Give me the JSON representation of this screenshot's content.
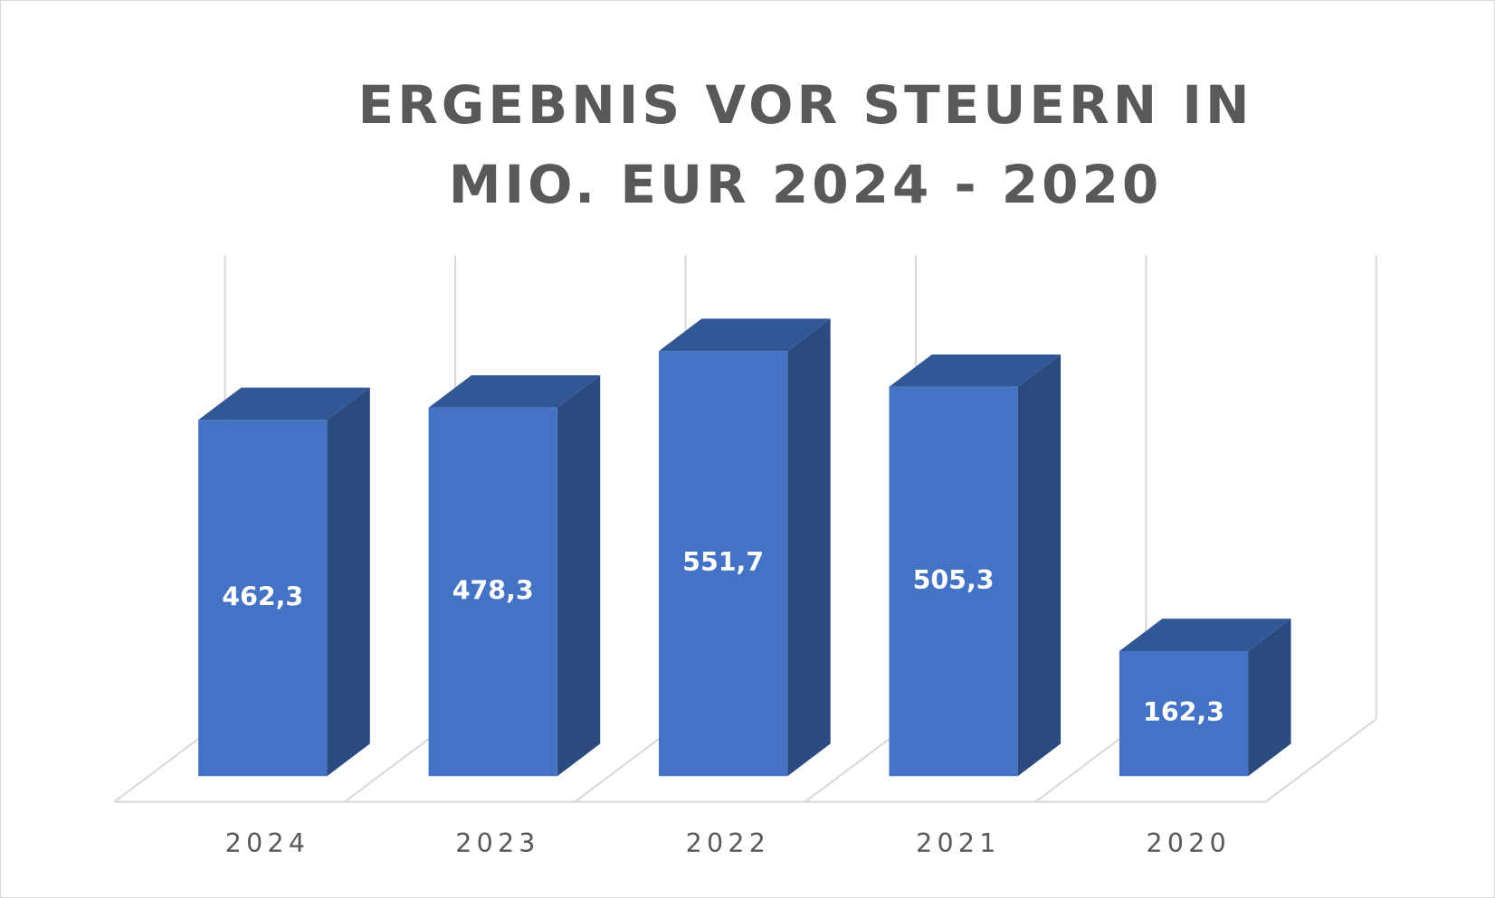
{
  "chart_data": {
    "type": "bar3d",
    "title": "ERGEBNIS VOR STEUERN IN MIO. EUR 2024 - 2020",
    "categories": [
      "2024",
      "2023",
      "2022",
      "2021",
      "2020"
    ],
    "values": [
      462.3,
      478.3,
      551.7,
      505.3,
      162.3
    ],
    "value_labels": [
      "462,3",
      "478,3",
      "551,7",
      "505,3",
      "162,3"
    ],
    "color": "#4472c4",
    "grid": true
  }
}
